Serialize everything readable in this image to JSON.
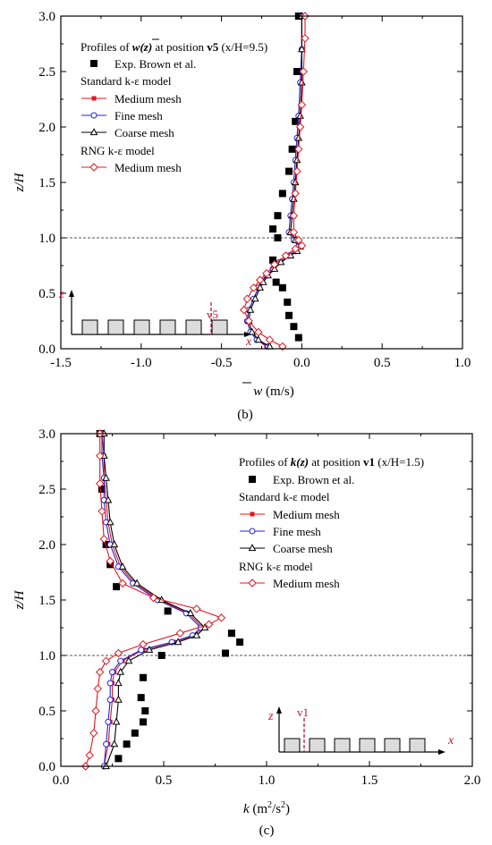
{
  "colors": {
    "standard": "#e8141c",
    "fine": "#2323e0",
    "coarse": "#000000",
    "rng": "#e8141c",
    "exp": "#000000",
    "refline": "#555555",
    "inset": "#c8102e"
  },
  "chart_data": [
    {
      "type": "line",
      "panel_label": "(b)",
      "xlabel": "w (m/s)",
      "xlabel_symbol": "w",
      "xlabel_unit": " (m/s)",
      "ylabel": "z/H",
      "xlim": [
        -1.5,
        1.0
      ],
      "ylim": [
        0.0,
        3.0
      ],
      "x_ticks": [
        "-1.5",
        "-1.0",
        "-0.5",
        "0.0",
        "0.5",
        "1.0"
      ],
      "y_ticks": [
        "0.0",
        "0.5",
        "1.0",
        "1.5",
        "2.0",
        "2.5",
        "3.0"
      ],
      "reference_line_y": 1.0,
      "legend": {
        "heading_pre": "Profiles of ",
        "heading_var": "w(z)",
        "heading_mid": " at position ",
        "heading_pos": "v5",
        "heading_paren": " (x/H=9.5)",
        "exp_label": "Exp. Brown et al.",
        "group1": "Standard k-ε model",
        "medium": "Medium mesh",
        "fine": "Fine mesh",
        "coarse": "Coarse mesh",
        "group2": "RNG k-ε model",
        "rng_medium": "Medium mesh"
      },
      "inset": {
        "axis_z": "z",
        "axis_x": "x",
        "marker": "v5"
      },
      "series": [
        {
          "name": "Exp. Brown et al.",
          "style": "exp",
          "x": [
            -0.02,
            -0.05,
            -0.08,
            -0.09,
            -0.12,
            -0.16,
            -0.18,
            -0.15,
            -0.18,
            -0.15,
            -0.12,
            -0.08,
            -0.06,
            -0.04,
            -0.03,
            -0.02,
            -0.02
          ],
          "y": [
            0.1,
            0.2,
            0.3,
            0.42,
            0.55,
            0.6,
            0.8,
            1.0,
            1.08,
            1.2,
            1.4,
            1.6,
            1.8,
            2.05,
            2.5,
            2.5,
            3.0
          ]
        },
        {
          "name": "Medium mesh",
          "style": "standard",
          "x": [
            -0.22,
            -0.28,
            -0.32,
            -0.34,
            -0.33,
            -0.3,
            -0.27,
            -0.25,
            -0.22,
            -0.18,
            -0.14,
            -0.08,
            -0.04,
            -0.02,
            -0.05,
            -0.08,
            -0.07,
            -0.06,
            -0.05,
            -0.04,
            -0.03,
            -0.02,
            -0.01,
            0.0,
            0.0
          ],
          "y": [
            0.02,
            0.08,
            0.15,
            0.25,
            0.35,
            0.45,
            0.55,
            0.6,
            0.66,
            0.72,
            0.78,
            0.84,
            0.88,
            0.92,
            0.98,
            1.05,
            1.2,
            1.35,
            1.5,
            1.7,
            1.9,
            2.1,
            2.4,
            2.7,
            3.0
          ]
        },
        {
          "name": "Fine mesh",
          "style": "fine",
          "x": [
            -0.21,
            -0.28,
            -0.32,
            -0.34,
            -0.33,
            -0.3,
            -0.27,
            -0.25,
            -0.22,
            -0.18,
            -0.14,
            -0.08,
            -0.04,
            -0.02,
            -0.05,
            -0.08,
            -0.07,
            -0.06,
            -0.05,
            -0.04,
            -0.03,
            -0.02,
            -0.01,
            0.0,
            0.0
          ],
          "y": [
            0.02,
            0.08,
            0.15,
            0.25,
            0.35,
            0.45,
            0.55,
            0.6,
            0.66,
            0.72,
            0.78,
            0.84,
            0.88,
            0.92,
            0.98,
            1.05,
            1.2,
            1.35,
            1.5,
            1.7,
            1.9,
            2.1,
            2.4,
            2.7,
            3.0
          ]
        },
        {
          "name": "Coarse mesh",
          "style": "coarse",
          "x": [
            -0.2,
            -0.27,
            -0.31,
            -0.33,
            -0.32,
            -0.29,
            -0.26,
            -0.24,
            -0.21,
            -0.17,
            -0.13,
            -0.07,
            -0.03,
            -0.01,
            -0.04,
            -0.07,
            -0.06,
            -0.05,
            -0.04,
            -0.03,
            -0.02,
            -0.01,
            0.0,
            0.0,
            0.0
          ],
          "y": [
            0.02,
            0.08,
            0.15,
            0.25,
            0.35,
            0.45,
            0.55,
            0.6,
            0.66,
            0.72,
            0.78,
            0.84,
            0.88,
            0.92,
            0.98,
            1.05,
            1.2,
            1.35,
            1.5,
            1.7,
            1.9,
            2.1,
            2.4,
            2.7,
            3.0
          ]
        },
        {
          "name": "Medium mesh",
          "style": "rng",
          "x": [
            -0.12,
            -0.2,
            -0.27,
            -0.33,
            -0.36,
            -0.34,
            -0.3,
            -0.26,
            -0.22,
            -0.17,
            -0.1,
            -0.04,
            0.0,
            -0.02,
            -0.05,
            -0.05,
            -0.04,
            -0.03,
            -0.02,
            -0.01,
            0.0,
            0.01,
            0.02,
            0.02
          ],
          "y": [
            0.02,
            0.08,
            0.15,
            0.25,
            0.35,
            0.45,
            0.55,
            0.62,
            0.68,
            0.76,
            0.84,
            0.9,
            0.93,
            0.98,
            1.05,
            1.2,
            1.4,
            1.6,
            1.8,
            2.0,
            2.2,
            2.5,
            2.8,
            3.0
          ]
        }
      ]
    },
    {
      "type": "line",
      "panel_label": "(c)",
      "xlabel": "k (m2/s2)",
      "xlabel_symbol": "k",
      "xlabel_unit_a": " (m",
      "xlabel_sup_a": "2",
      "xlabel_unit_b": "/s",
      "xlabel_sup_b": "2",
      "xlabel_unit_c": ")",
      "ylabel": "z/H",
      "xlim": [
        0.0,
        2.0
      ],
      "ylim": [
        0.0,
        3.0
      ],
      "x_ticks": [
        "0.0",
        "0.5",
        "1.0",
        "1.5",
        "2.0"
      ],
      "y_ticks": [
        "0.0",
        "0.5",
        "1.0",
        "1.5",
        "2.0",
        "2.5",
        "3.0"
      ],
      "reference_line_y": 1.0,
      "legend": {
        "heading_pre": "Profiles of ",
        "heading_var": "k(z)",
        "heading_mid": " at position ",
        "heading_pos": "v1",
        "heading_paren": " (x/H=1.5)",
        "exp_label": "Exp. Brown et al.",
        "group1": "Standard k-ε model",
        "medium": "Medium mesh",
        "fine": "Fine mesh",
        "coarse": "Coarse mesh",
        "group2": "RNG k-ε model",
        "rng_medium": "Medium mesh"
      },
      "inset": {
        "axis_z": "z",
        "axis_x": "x",
        "marker": "v1"
      },
      "series": [
        {
          "name": "Exp. Brown et al.",
          "style": "exp",
          "x": [
            0.28,
            0.32,
            0.36,
            0.4,
            0.41,
            0.39,
            0.4,
            0.49,
            0.8,
            0.87,
            0.83,
            0.52,
            0.27,
            0.24,
            0.22,
            0.2,
            0.19
          ],
          "y": [
            0.07,
            0.2,
            0.3,
            0.4,
            0.5,
            0.62,
            0.8,
            1.0,
            1.02,
            1.12,
            1.2,
            1.4,
            1.62,
            1.82,
            2.0,
            2.5,
            3.0
          ]
        },
        {
          "name": "Medium mesh",
          "style": "standard",
          "x": [
            0.21,
            0.23,
            0.24,
            0.25,
            0.25,
            0.26,
            0.3,
            0.4,
            0.55,
            0.65,
            0.69,
            0.62,
            0.48,
            0.36,
            0.29,
            0.25,
            0.23,
            0.22,
            0.21,
            0.21,
            0.2
          ],
          "y": [
            0.0,
            0.2,
            0.4,
            0.6,
            0.75,
            0.85,
            0.95,
            1.05,
            1.12,
            1.18,
            1.25,
            1.38,
            1.5,
            1.65,
            1.8,
            2.0,
            2.2,
            2.4,
            2.6,
            2.8,
            3.0
          ]
        },
        {
          "name": "Fine mesh",
          "style": "fine",
          "x": [
            0.21,
            0.22,
            0.23,
            0.24,
            0.24,
            0.25,
            0.29,
            0.39,
            0.54,
            0.64,
            0.68,
            0.61,
            0.47,
            0.35,
            0.28,
            0.24,
            0.22,
            0.21,
            0.21,
            0.2,
            0.2
          ],
          "y": [
            0.0,
            0.2,
            0.4,
            0.6,
            0.75,
            0.85,
            0.95,
            1.05,
            1.12,
            1.18,
            1.25,
            1.38,
            1.5,
            1.65,
            1.8,
            2.0,
            2.2,
            2.4,
            2.6,
            2.8,
            3.0
          ]
        },
        {
          "name": "Coarse mesh",
          "style": "coarse",
          "x": [
            0.22,
            0.26,
            0.27,
            0.28,
            0.28,
            0.29,
            0.33,
            0.43,
            0.57,
            0.66,
            0.7,
            0.63,
            0.49,
            0.37,
            0.3,
            0.26,
            0.24,
            0.23,
            0.22,
            0.21,
            0.21
          ],
          "y": [
            0.0,
            0.2,
            0.4,
            0.6,
            0.75,
            0.85,
            0.95,
            1.05,
            1.12,
            1.18,
            1.25,
            1.38,
            1.5,
            1.65,
            1.8,
            2.0,
            2.2,
            2.4,
            2.6,
            2.8,
            3.0
          ]
        },
        {
          "name": "Medium mesh",
          "style": "rng",
          "x": [
            0.12,
            0.14,
            0.16,
            0.17,
            0.18,
            0.19,
            0.22,
            0.28,
            0.4,
            0.58,
            0.72,
            0.78,
            0.66,
            0.45,
            0.3,
            0.24,
            0.21,
            0.2,
            0.19,
            0.19,
            0.19
          ],
          "y": [
            0.0,
            0.1,
            0.3,
            0.5,
            0.7,
            0.85,
            0.95,
            1.02,
            1.1,
            1.2,
            1.28,
            1.34,
            1.42,
            1.52,
            1.65,
            1.85,
            2.05,
            2.3,
            2.55,
            2.8,
            3.0
          ]
        }
      ]
    }
  ]
}
